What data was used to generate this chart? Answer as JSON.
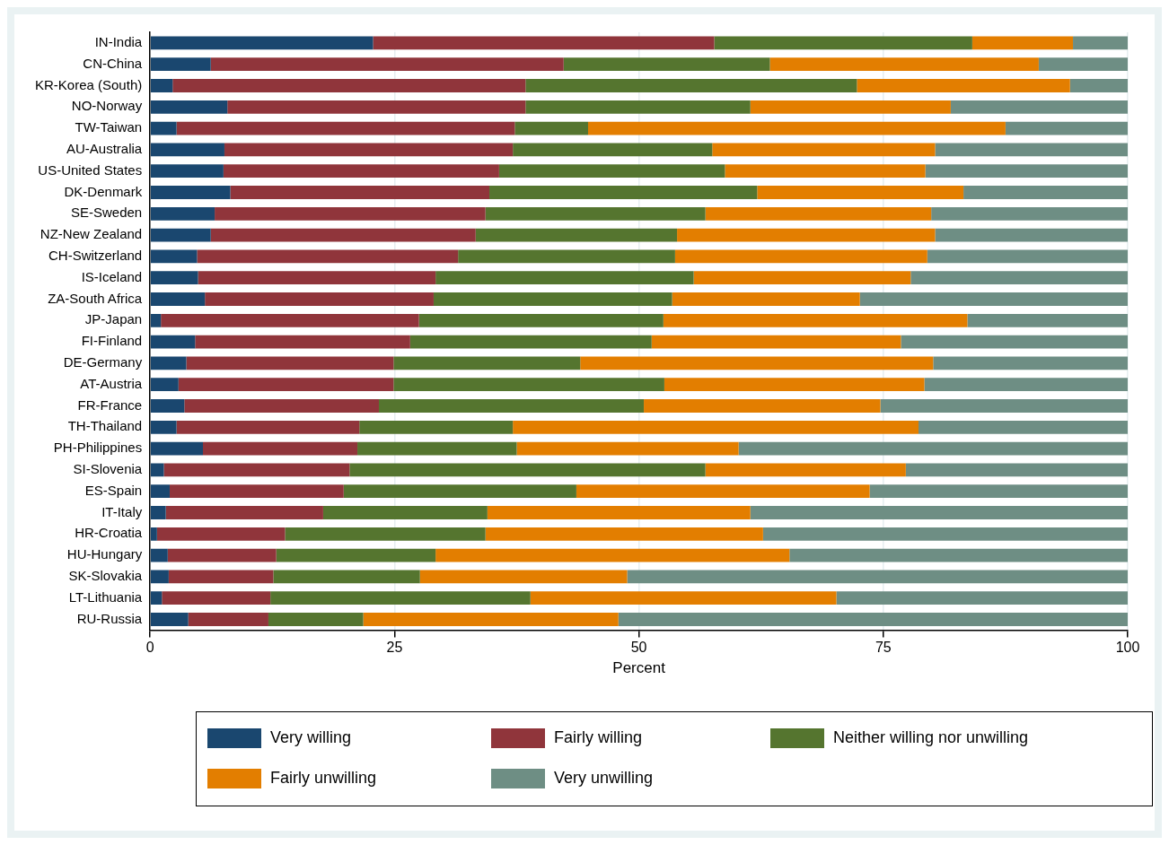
{
  "chart_data": {
    "type": "bar",
    "orientation": "horizontal",
    "stacked": true,
    "xlabel": "Percent",
    "categories": [
      "IN-India",
      "CN-China",
      "KR-Korea (South)",
      "NO-Norway",
      "TW-Taiwan",
      "AU-Australia",
      "US-United States",
      "DK-Denmark",
      "SE-Sweden",
      "NZ-New Zealand",
      "CH-Switzerland",
      "IS-Iceland",
      "ZA-South Africa",
      "JP-Japan",
      "FI-Finland",
      "DE-Germany",
      "AT-Austria",
      "FR-France",
      "TH-Thailand",
      "PH-Philippines",
      "SI-Slovenia",
      "ES-Spain",
      "IT-Italy",
      "HR-Croatia",
      "HU-Hungary",
      "SK-Slovakia",
      "LT-Lithuania",
      "RU-Russia"
    ],
    "series": [
      {
        "name": "Very willing",
        "color": "#1a476f",
        "values": [
          22.8,
          6.2,
          2.3,
          7.9,
          2.7,
          7.6,
          7.5,
          8.2,
          6.6,
          6.2,
          4.8,
          4.9,
          5.6,
          1.1,
          4.6,
          3.7,
          2.9,
          3.5,
          2.7,
          5.4,
          1.4,
          2.0,
          1.6,
          0.7,
          1.8,
          1.9,
          1.2,
          3.9
        ]
      },
      {
        "name": "Fairly willing",
        "color": "#90353b",
        "values": [
          34.9,
          36.1,
          36.1,
          30.5,
          34.6,
          29.5,
          28.2,
          26.5,
          27.7,
          27.1,
          26.7,
          24.3,
          23.4,
          26.4,
          22.0,
          21.2,
          22.0,
          19.9,
          18.7,
          15.8,
          19.0,
          17.8,
          16.1,
          13.1,
          11.1,
          10.7,
          11.1,
          8.2
        ]
      },
      {
        "name": "Neither willing nor unwilling",
        "color": "#55752f",
        "values": [
          26.4,
          21.1,
          33.9,
          23.0,
          7.5,
          20.4,
          23.1,
          27.4,
          22.5,
          20.6,
          22.2,
          26.4,
          24.4,
          25.0,
          24.7,
          19.1,
          27.7,
          27.1,
          15.7,
          16.3,
          36.4,
          23.8,
          16.8,
          20.5,
          16.3,
          15.0,
          26.6,
          9.7
        ]
      },
      {
        "name": "Fairly unwilling",
        "color": "#e37e00",
        "values": [
          10.3,
          27.5,
          21.8,
          20.5,
          42.7,
          22.8,
          20.5,
          21.1,
          23.1,
          26.4,
          25.8,
          22.2,
          19.2,
          31.1,
          25.5,
          36.1,
          26.6,
          24.2,
          41.5,
          22.7,
          20.5,
          30.0,
          26.9,
          28.4,
          36.2,
          21.2,
          31.3,
          26.1
        ]
      },
      {
        "name": "Very unwilling",
        "color": "#6e8e84",
        "values": [
          5.6,
          9.1,
          5.9,
          18.1,
          12.5,
          19.7,
          20.7,
          16.8,
          20.1,
          19.7,
          20.5,
          22.2,
          27.4,
          16.4,
          23.2,
          19.9,
          20.8,
          25.3,
          21.4,
          39.8,
          22.7,
          26.4,
          38.6,
          37.3,
          34.6,
          51.2,
          29.8,
          52.1
        ]
      }
    ],
    "xlim": [
      0,
      100
    ],
    "xticks": [
      0,
      25,
      50,
      75,
      100
    ],
    "grid": "x",
    "legend": "bottom"
  }
}
